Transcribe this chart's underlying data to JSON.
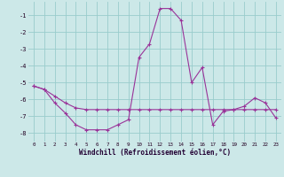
{
  "x": [
    0,
    1,
    2,
    3,
    4,
    5,
    6,
    7,
    8,
    9,
    10,
    11,
    12,
    13,
    14,
    15,
    16,
    17,
    18,
    19,
    20,
    21,
    22,
    23
  ],
  "y_line1": [
    -5.2,
    -5.4,
    -5.8,
    -6.2,
    -6.5,
    -6.6,
    -6.6,
    -6.6,
    -6.6,
    -6.6,
    -6.6,
    -6.6,
    -6.6,
    -6.6,
    -6.6,
    -6.6,
    -6.6,
    -6.6,
    -6.6,
    -6.6,
    -6.6,
    -6.6,
    -6.6,
    -6.6
  ],
  "y_line2": [
    -5.2,
    -5.4,
    -6.2,
    -6.8,
    -7.5,
    -7.8,
    -7.8,
    -7.8,
    -7.5,
    -7.2,
    -3.5,
    -2.7,
    -0.6,
    -0.6,
    -1.3,
    -5.0,
    -4.1,
    -7.5,
    -6.7,
    -6.6,
    -6.4,
    -5.9,
    -6.2,
    -7.1
  ],
  "background_color": "#cce8e8",
  "grid_color": "#99cccc",
  "line_color": "#993399",
  "xlabel": "Windchill (Refroidissement éolien,°C)",
  "xlim": [
    -0.5,
    23.5
  ],
  "ylim": [
    -8.5,
    -0.2
  ],
  "yticks": [
    -8,
    -7,
    -6,
    -5,
    -4,
    -3,
    -2,
    -1
  ],
  "xticks": [
    0,
    1,
    2,
    3,
    4,
    5,
    6,
    7,
    8,
    9,
    10,
    11,
    12,
    13,
    14,
    15,
    16,
    17,
    18,
    19,
    20,
    21,
    22,
    23
  ],
  "marker": "+"
}
